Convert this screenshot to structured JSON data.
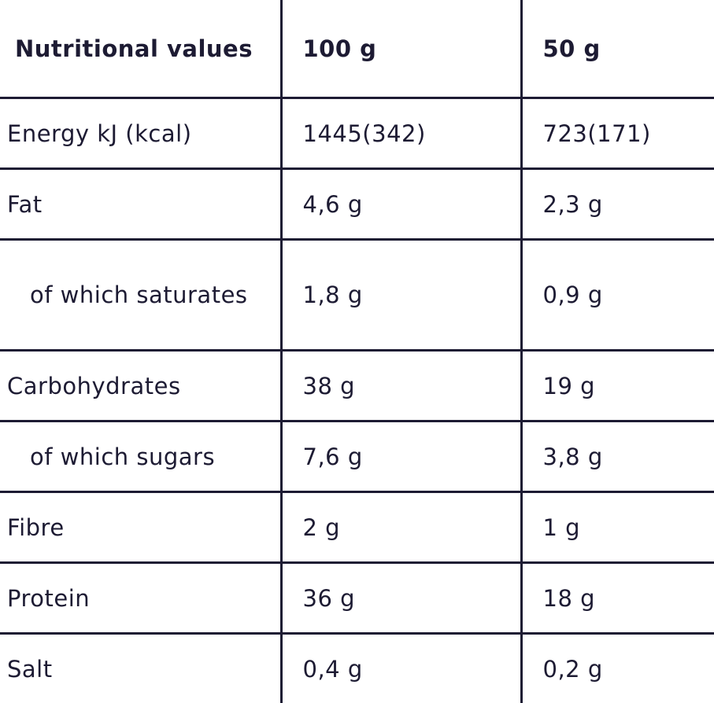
{
  "table": {
    "header": [
      "Nutritional values",
      "100 g",
      "50 g"
    ],
    "rows": [
      [
        "Energy kJ (kcal)",
        "1445(342)",
        "723(171)"
      ],
      [
        "Fat",
        "4,6 g",
        "2,3 g"
      ],
      [
        "of which saturates",
        "1,8 g",
        "0,9 g"
      ],
      [
        "Carbohydrates",
        "38 g",
        "19 g"
      ],
      [
        "of which sugars",
        "7,6 g",
        "3,8 g"
      ],
      [
        "Fibre",
        "2 g",
        "1 g"
      ],
      [
        "Protein",
        "36 g",
        "18 g"
      ],
      [
        "Salt",
        "0,4 g",
        "0,2 g"
      ]
    ]
  }
}
